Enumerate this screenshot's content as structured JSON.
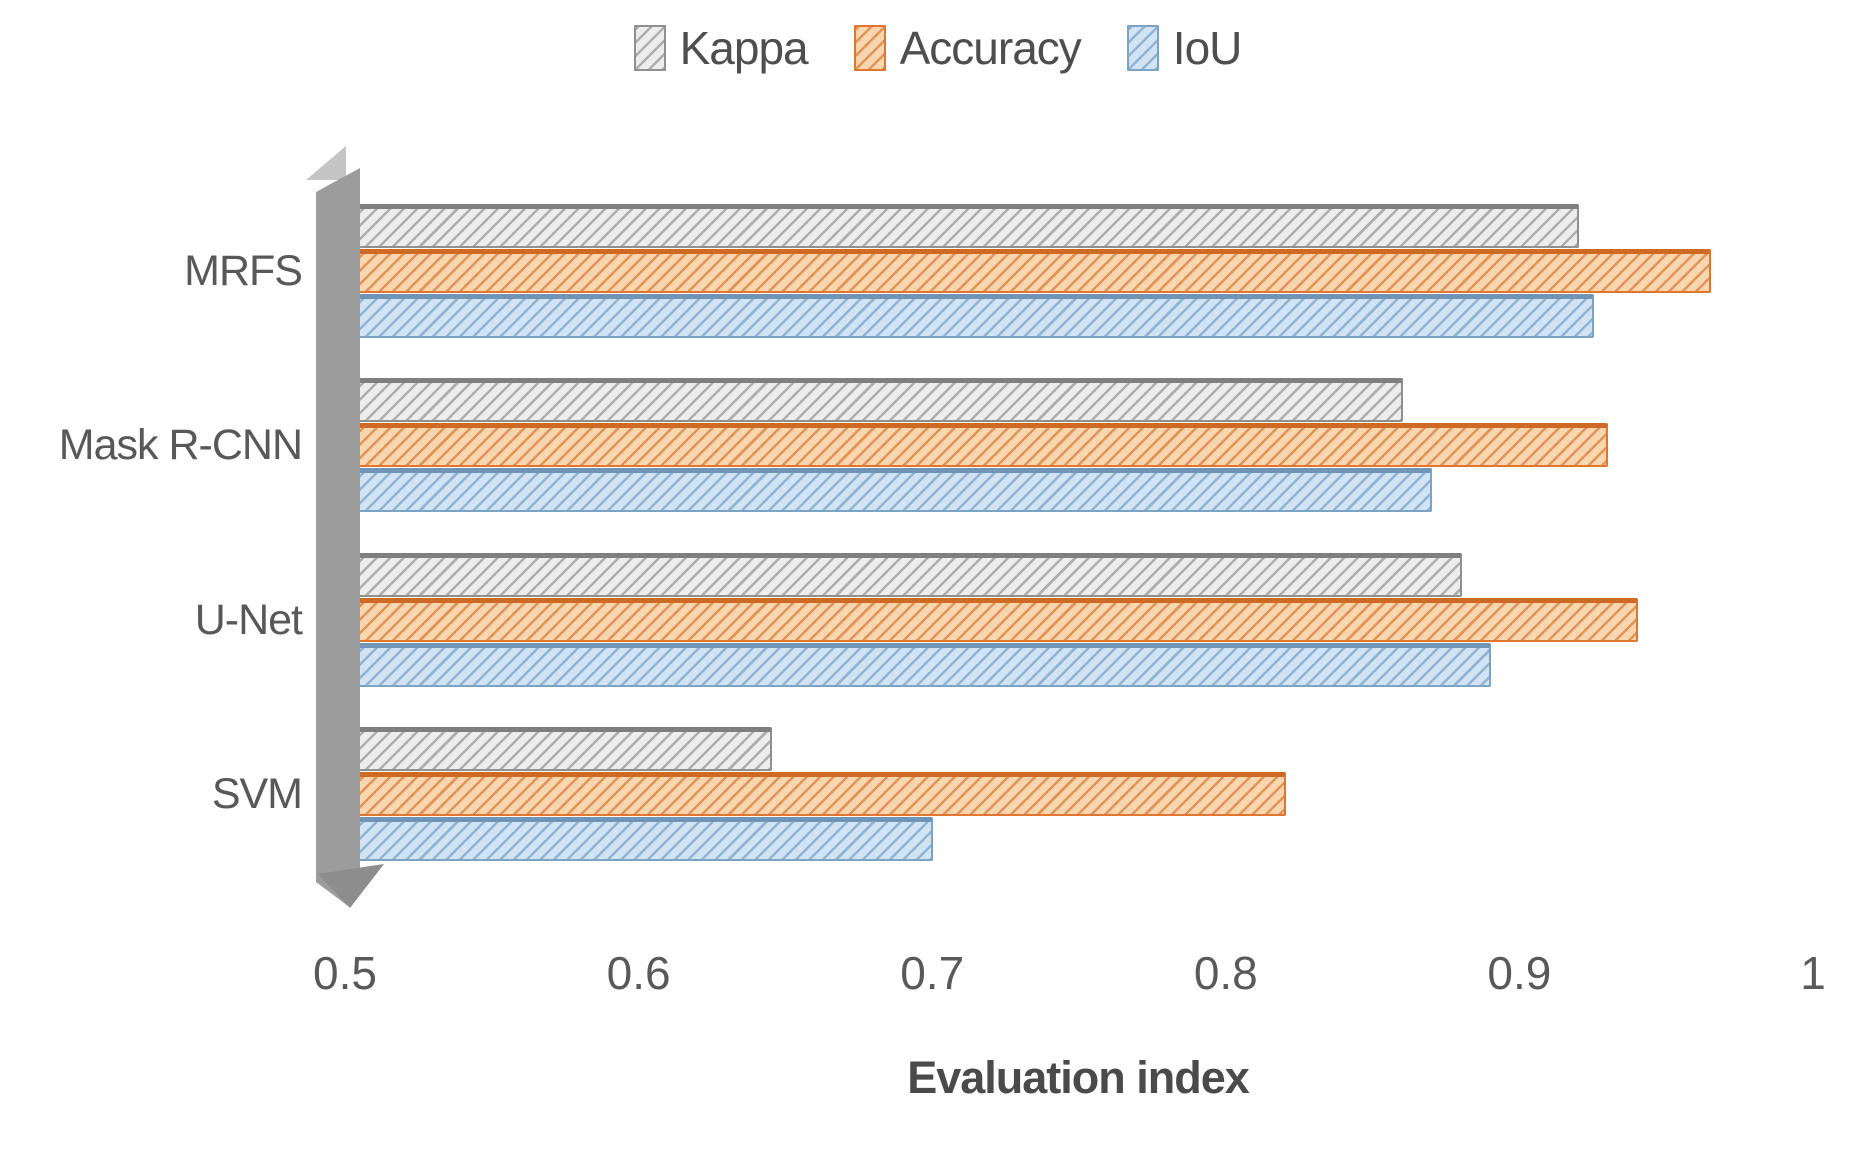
{
  "chart_data": {
    "type": "bar",
    "orientation": "horizontal",
    "title": "",
    "xlabel": "Evaluation index",
    "ylabel": "",
    "xlim": [
      0.5,
      1
    ],
    "xticks": [
      "0.5",
      "0.6",
      "0.7",
      "0.8",
      "0.9",
      "1"
    ],
    "grid": false,
    "legend_position": "top-center",
    "categories": [
      "MRFS",
      "Mask R-CNN",
      "U-Net",
      "SVM"
    ],
    "series": [
      {
        "name": "Kappa",
        "values": [
          0.92,
          0.86,
          0.88,
          0.645
        ],
        "fill": "#ededed",
        "hatch": "#aeaeae",
        "border": "#909090",
        "edge": "#7f7f7f"
      },
      {
        "name": "Accuracy",
        "values": [
          0.965,
          0.93,
          0.94,
          0.82
        ],
        "fill": "#f9d6ae",
        "hatch": "#e0945a",
        "border": "#e0762f",
        "edge": "#cf6a25"
      },
      {
        "name": "IoU",
        "values": [
          0.925,
          0.87,
          0.89,
          0.7
        ],
        "fill": "#d2e4f4",
        "hatch": "#8fb4d6",
        "border": "#7ba3c4",
        "edge": "#6f94b5"
      }
    ],
    "wall_color": "#9c9c9c",
    "wall_color_light": "#c4c4c4",
    "wall_color_dark": "#8d8d8d",
    "text_color": "#595959"
  }
}
